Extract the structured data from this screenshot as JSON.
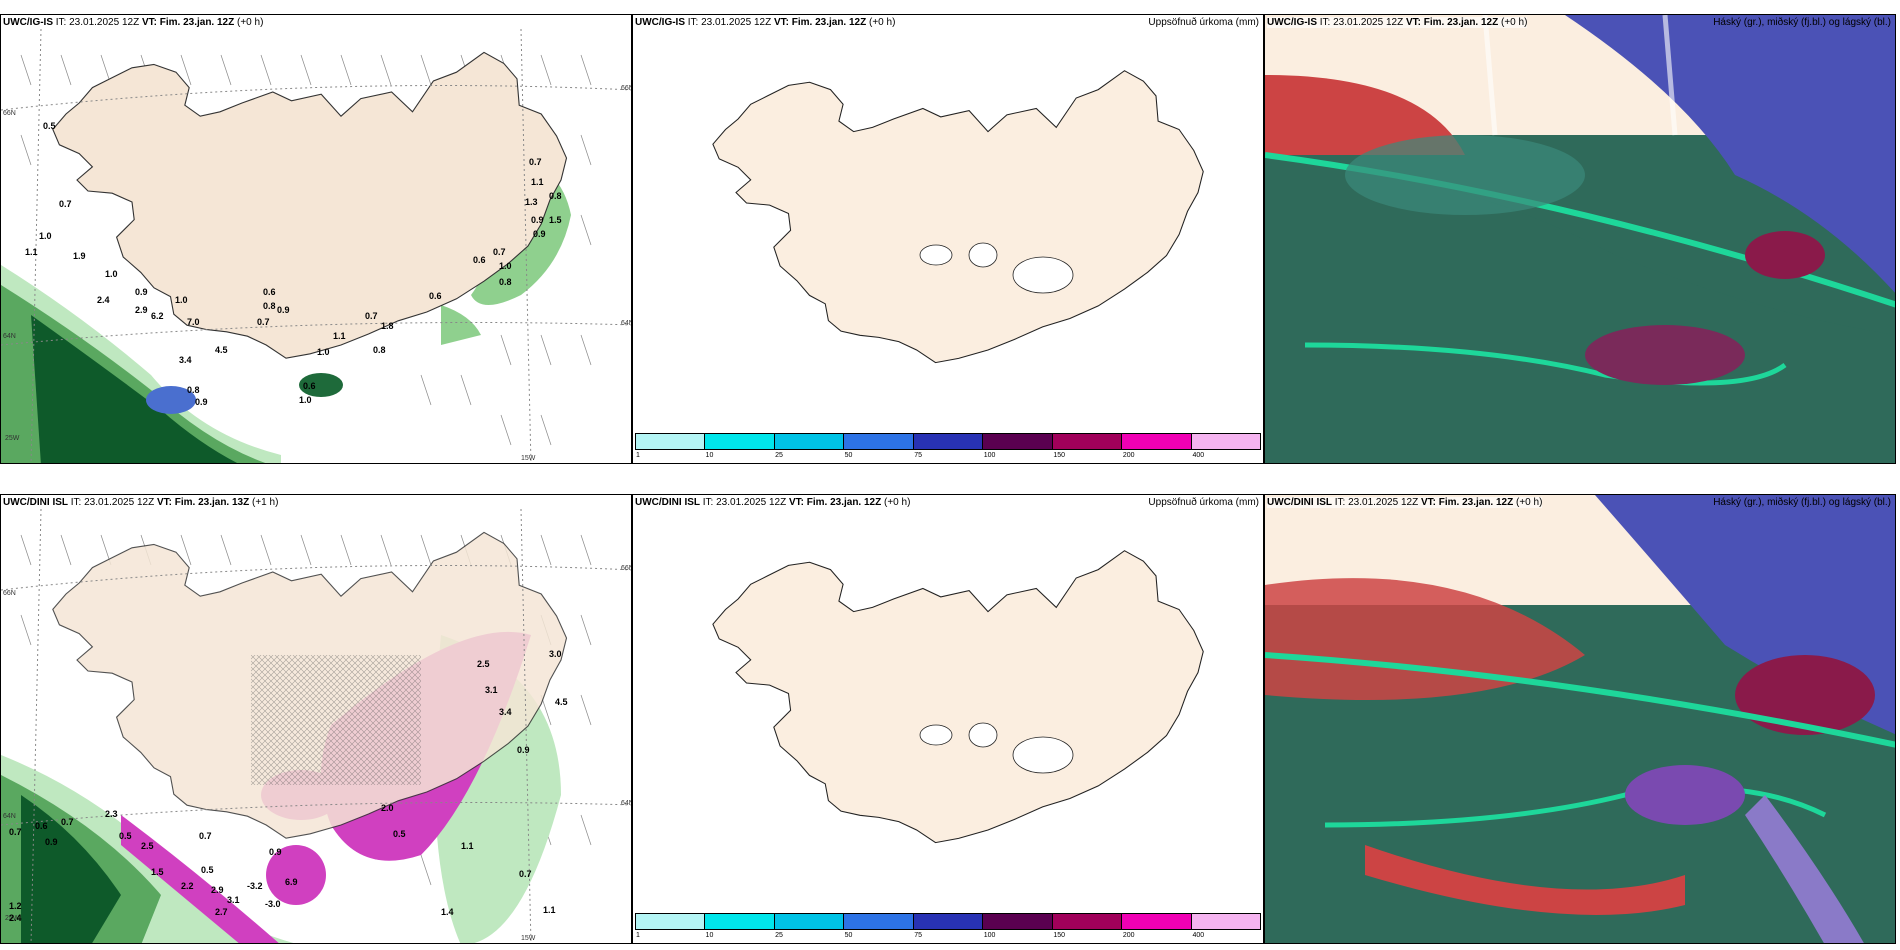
{
  "panels": {
    "p1": {
      "model": "UWC/IG-IS",
      "it": "23.01.2025 12Z",
      "vt": "Fim. 23.jan. 12Z",
      "lead": "(+0 h)"
    },
    "p2": {
      "model": "UWC/IG-IS",
      "it": "23.01.2025 12Z",
      "vt": "Fim. 23.jan. 12Z",
      "lead": "(+0 h)",
      "right": "Uppsöfnuð úrkoma (mm)"
    },
    "p3": {
      "model": "UWC/IG-IS",
      "it": "23.01.2025 12Z",
      "vt": "Fim. 23.jan. 12Z",
      "lead": "(+0 h)",
      "right": "Háský (gr.), miðský (fj.bl.) og lágský (bl.)"
    },
    "p4": {
      "model": "UWC/DINI ISL",
      "it": "23.01.2025 12Z",
      "vt": "Fim. 23.jan. 13Z",
      "lead": "(+1 h)"
    },
    "p5": {
      "model": "UWC/DINI ISL",
      "it": "23.01.2025 12Z",
      "vt": "Fim. 23.jan. 12Z",
      "lead": "(+0 h)",
      "right": "Uppsöfnuð úrkoma (mm)"
    },
    "p6": {
      "model": "UWC/DINI ISL",
      "it": "23.01.2025 12Z",
      "vt": "Fim. 23.jan. 12Z",
      "lead": "(+0 h)",
      "right": "Háský (gr.), miðský (fj.bl.) og lágský (bl.)"
    }
  },
  "labels": {
    "it": "IT:",
    "vt": "VT:"
  },
  "coords": {
    "lat66": "66N",
    "lat64": "64N",
    "lon25": "25W",
    "lon15": "15W"
  },
  "colorbar": {
    "colors": [
      "#b4f5f5",
      "#00e6eb",
      "#00c3e6",
      "#2d73e6",
      "#2832b4",
      "#5a0050",
      "#a0005a",
      "#f000b4",
      "#f5b4f0"
    ],
    "ticks": [
      "1",
      "10",
      "25",
      "50",
      "75",
      "100",
      "150",
      "200",
      "400"
    ]
  },
  "map_values": {
    "p1": [
      "0.5",
      "0.7",
      "1.0",
      "1.1",
      "1.9",
      "1.0",
      "0.9",
      "2.4",
      "2.9",
      "1.0",
      "6.2",
      "7.0",
      "3.4",
      "4.5",
      "0.8",
      "0.9",
      "0.6",
      "0.8",
      "0.9",
      "0.7",
      "1.0",
      "1.1",
      "0.6",
      "0.8",
      "0.6",
      "0.6",
      "0.7",
      "1.1",
      "1.3",
      "0.9",
      "0.8",
      "1.5",
      "0.9",
      "0.7",
      "1.0",
      "0.7",
      "1.8",
      "0.8",
      "1.0"
    ],
    "p4": [
      "0.7",
      "0.6",
      "0.7",
      "0.9",
      "2.3",
      "0.5",
      "0.7",
      "2.5",
      "0.5",
      "1.5",
      "2.2",
      "2.9",
      "3.1",
      "2.7",
      "-3.2",
      "-3.0",
      "0.9",
      "6.9",
      "2.0",
      "0.5",
      "1.1",
      "0.7",
      "1.1",
      "2.5",
      "3.1",
      "3.4",
      "4.5",
      "3.0",
      "0.9",
      "1.2",
      "2.4",
      "1.4"
    ]
  }
}
